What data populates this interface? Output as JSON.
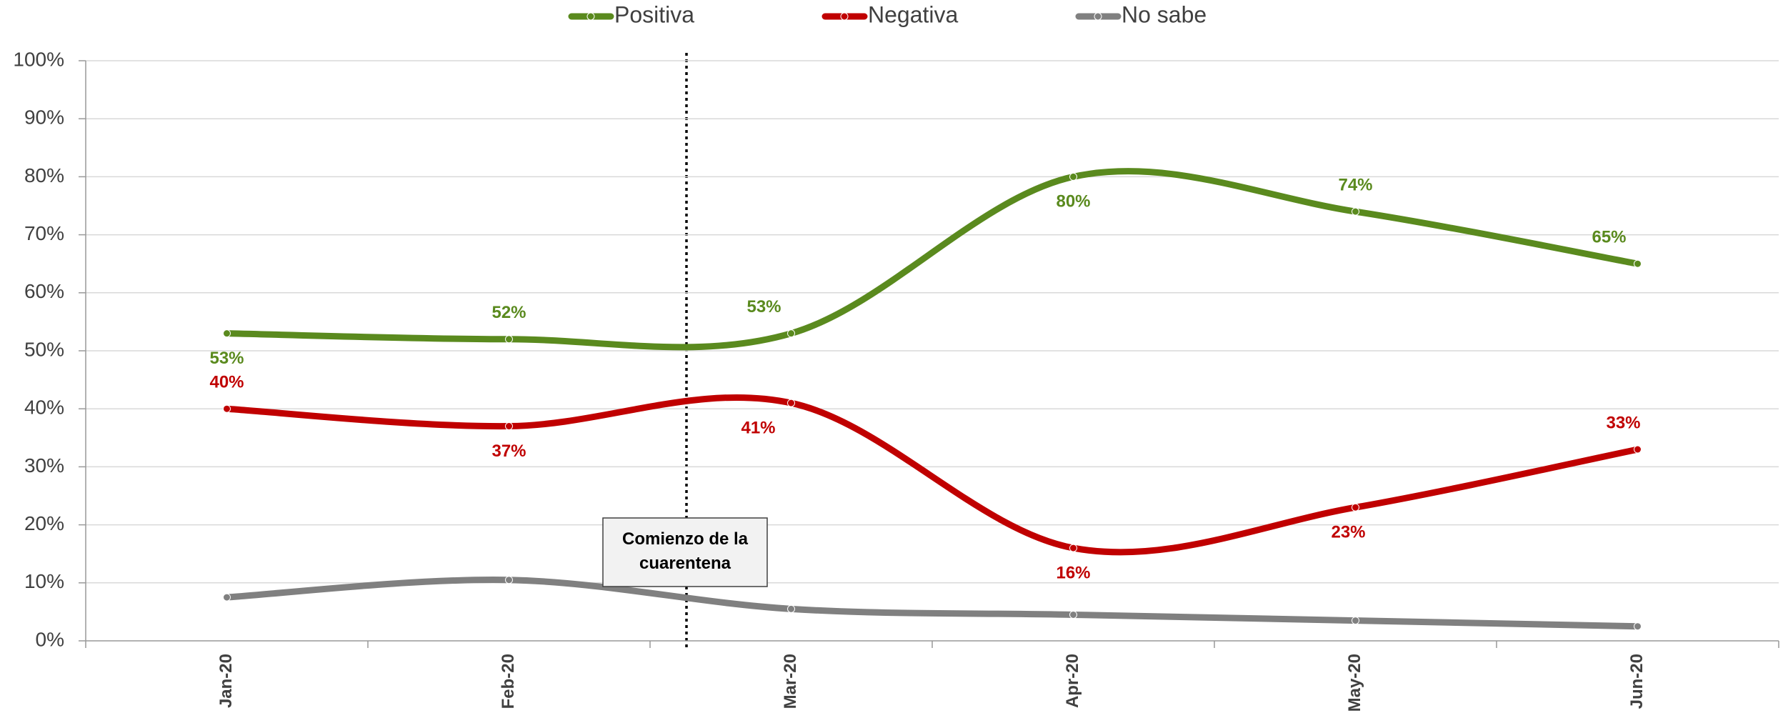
{
  "chart_data": {
    "type": "line",
    "categories": [
      "Jan-20",
      "Feb-20",
      "Mar-20",
      "Apr-20",
      "May-20",
      "Jun-20"
    ],
    "series": [
      {
        "name": "Positiva",
        "color": "#5a8a1e",
        "values": [
          53,
          52,
          53,
          80,
          74,
          65
        ],
        "value_labels": [
          "53%",
          "52%",
          "53%",
          "80%",
          "74%",
          "65%"
        ]
      },
      {
        "name": "Negativa",
        "color": "#c00000",
        "values": [
          40,
          37,
          41,
          16,
          23,
          33
        ],
        "value_labels": [
          "40%",
          "37%",
          "41%",
          "16%",
          "23%",
          "33%"
        ]
      },
      {
        "name": "No sabe",
        "color": "#808080",
        "values": [
          7.5,
          10.5,
          5.5,
          4.5,
          3.5,
          2.5
        ]
      }
    ],
    "ylim": [
      0,
      100
    ],
    "yticks": [
      {
        "value": 0,
        "label": "0%"
      },
      {
        "value": 10,
        "label": "10%"
      },
      {
        "value": 20,
        "label": "20%"
      },
      {
        "value": 30,
        "label": "30%"
      },
      {
        "value": 40,
        "label": "40%"
      },
      {
        "value": 50,
        "label": "50%"
      },
      {
        "value": 60,
        "label": "60%"
      },
      {
        "value": 70,
        "label": "70%"
      },
      {
        "value": 80,
        "label": "80%"
      },
      {
        "value": 90,
        "label": "90%"
      },
      {
        "value": 100,
        "label": "100%"
      }
    ],
    "grid": true,
    "legend": "top",
    "annotation": "Comienzo de la cuarentena"
  }
}
